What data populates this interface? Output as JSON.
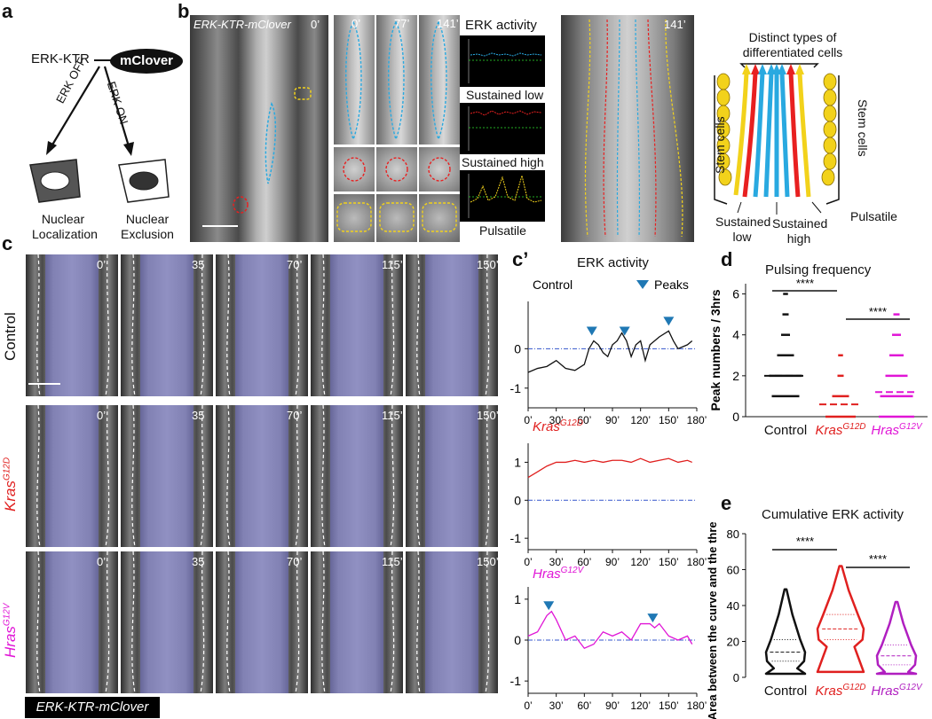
{
  "panels": {
    "a": "a",
    "b": "b",
    "c": "c",
    "c_prime": "c’",
    "d": "d",
    "e": "e"
  },
  "panel_a": {
    "reporter": "ERK-KTR",
    "fluor": "mClover",
    "arrow_left": "ERK OFF",
    "arrow_right": "ERK ON",
    "left_caption": "Nuclear Localization",
    "right_caption": "Nuclear Exclusion"
  },
  "panel_b": {
    "image_label": "ERK-KTR-mClover",
    "t0": "0’",
    "crop_times": [
      "0’",
      "77’",
      "141’"
    ],
    "trace_title": "ERK activity",
    "trace_labels": [
      "Sustained low",
      "Sustained high",
      "Pulsatile"
    ],
    "overlay_time": "141’",
    "diagram_title": "Distinct types of differentiated cells",
    "stem_left": "Stem cells",
    "stem_right": "Stem cells",
    "legend_low": "Sustained low",
    "legend_high": "Sustained high",
    "legend_pulse": "Pulsatile",
    "colors": {
      "low": "#29a9e0",
      "high": "#e82020",
      "pulse": "#f2d21b"
    }
  },
  "panel_c": {
    "times": [
      "0’",
      "35",
      "70’",
      "115’",
      "150’"
    ],
    "rows": [
      {
        "label": "Control",
        "color": "#111111"
      },
      {
        "label": "Kras",
        "sup": "G12D",
        "color": "#e0201f"
      },
      {
        "label": "Hras",
        "sup": "G12V",
        "color": "#e015d6"
      }
    ],
    "footer": "ERK-KTR-mClover"
  },
  "panel_cprime": {
    "title": "ERK activity",
    "control_label": "Control",
    "peaks_label": "Peaks",
    "kras_label": "Kras",
    "kras_sup": "G12D",
    "hras_label": "Hras",
    "hras_sup": "G12V",
    "x_ticks": [
      "0’",
      "30’",
      "60’",
      "90’",
      "120’",
      "150’",
      "180’"
    ],
    "y_ticks_control": [
      "0",
      "-1"
    ],
    "y_ticks_ras": [
      "1",
      "0",
      "-1"
    ]
  },
  "panel_d": {
    "title": "Pulsing frequency",
    "ylabel": "Peak numbers / 3hrs",
    "categories": [
      "Control",
      "Kras",
      "Hras"
    ],
    "cat_sups": [
      "",
      "G12D",
      "G12V"
    ],
    "y_ticks": [
      "0",
      "2",
      "4",
      "6"
    ],
    "sig": [
      "****",
      "****"
    ]
  },
  "panel_e": {
    "title": "Cumulative ERK activity",
    "ylabel": "Area between the curve and the threshold",
    "categories": [
      "Control",
      "Kras",
      "Hras"
    ],
    "cat_sups": [
      "",
      "G12D",
      "G12V"
    ],
    "y_ticks": [
      "0",
      "20",
      "40",
      "60",
      "80"
    ],
    "sig": [
      "****",
      "****"
    ]
  },
  "chart_data": [
    {
      "type": "line",
      "title": "ERK activity",
      "series": [
        {
          "name": "Control",
          "x": [
            0,
            10,
            20,
            30,
            40,
            50,
            60,
            65,
            70,
            75,
            80,
            85,
            90,
            95,
            100,
            105,
            110,
            115,
            120,
            125,
            130,
            140,
            150,
            155,
            160,
            170,
            175
          ],
          "y": [
            -0.6,
            -0.5,
            -0.45,
            -0.3,
            -0.5,
            -0.55,
            -0.4,
            0.0,
            0.2,
            0.1,
            -0.1,
            -0.2,
            0.1,
            0.2,
            0.4,
            0.2,
            -0.2,
            0.1,
            0.2,
            -0.3,
            0.1,
            0.3,
            0.45,
            0.2,
            0.0,
            0.1,
            0.2
          ]
        }
      ],
      "peaks_x": [
        68,
        103,
        150
      ],
      "xlim": [
        0,
        180
      ],
      "ylim": [
        -1.5,
        1.2
      ]
    },
    {
      "type": "line",
      "series": [
        {
          "name": "Kras G12D",
          "x": [
            0,
            10,
            20,
            30,
            40,
            50,
            60,
            70,
            80,
            90,
            100,
            110,
            120,
            130,
            140,
            150,
            160,
            170,
            175
          ],
          "y": [
            0.6,
            0.75,
            0.9,
            1.0,
            1.0,
            1.05,
            1.0,
            1.05,
            1.0,
            1.05,
            1.05,
            1.0,
            1.1,
            1.0,
            1.05,
            1.1,
            1.0,
            1.05,
            1.0
          ]
        }
      ],
      "xlim": [
        0,
        180
      ],
      "ylim": [
        -1.3,
        1.5
      ]
    },
    {
      "type": "line",
      "series": [
        {
          "name": "Hras G12V",
          "x": [
            0,
            10,
            20,
            25,
            30,
            40,
            50,
            60,
            70,
            80,
            90,
            100,
            110,
            120,
            130,
            135,
            140,
            150,
            160,
            170,
            175
          ],
          "y": [
            0.1,
            0.2,
            0.6,
            0.7,
            0.5,
            0.0,
            0.1,
            -0.2,
            -0.1,
            0.2,
            0.1,
            0.2,
            0.0,
            0.4,
            0.4,
            0.3,
            0.4,
            0.1,
            0.0,
            0.1,
            -0.1
          ]
        }
      ],
      "peaks_x": [
        22,
        133
      ],
      "xlim": [
        0,
        180
      ],
      "ylim": [
        -1.3,
        1.3
      ]
    },
    {
      "type": "scatter",
      "title": "Pulsing frequency",
      "categories": [
        "Control",
        "Kras G12D",
        "Hras G12V"
      ],
      "ylabel": "Peak numbers / 3hrs",
      "ylim": [
        0,
        6.5
      ],
      "values": [
        {
          "points": [
            {
              "y": 6,
              "n": 1
            },
            {
              "y": 5,
              "n": 2
            },
            {
              "y": 4,
              "n": 4
            },
            {
              "y": 3,
              "n": 10
            },
            {
              "y": 2,
              "n": 22
            },
            {
              "y": 1,
              "n": 18
            }
          ],
          "mean": 2.0
        },
        {
          "points": [
            {
              "y": 3,
              "n": 1
            },
            {
              "y": 2,
              "n": 2
            },
            {
              "y": 1,
              "n": 10
            },
            {
              "y": 0,
              "n": 20
            }
          ],
          "mean": 0.6
        },
        {
          "points": [
            {
              "y": 5,
              "n": 2
            },
            {
              "y": 4,
              "n": 4
            },
            {
              "y": 3,
              "n": 8
            },
            {
              "y": 2,
              "n": 14
            },
            {
              "y": 1,
              "n": 22
            },
            {
              "y": 0,
              "n": 24
            }
          ],
          "mean": 1.2
        }
      ]
    },
    {
      "type": "violin",
      "title": "Cumulative ERK activity",
      "categories": [
        "Control",
        "Kras G12D",
        "Hras G12V"
      ],
      "ylabel": "Area between the curve and the threshold",
      "ylim": [
        0,
        80
      ],
      "stats": [
        {
          "min": 2,
          "q1": 9,
          "median": 14,
          "q3": 21,
          "max": 49
        },
        {
          "min": 3,
          "q1": 21,
          "median": 27,
          "q3": 35,
          "max": 62
        },
        {
          "min": 2,
          "q1": 7,
          "median": 12,
          "q3": 18,
          "max": 42
        }
      ]
    }
  ]
}
